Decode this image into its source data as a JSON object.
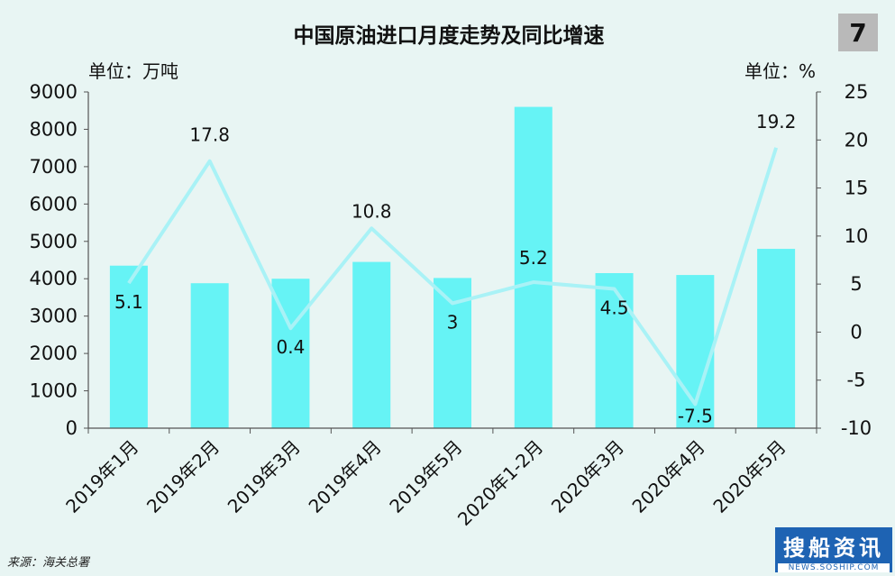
{
  "badge": "7",
  "logo": {
    "name": "搜船资讯",
    "site": "NEWS.SOSHIP.COM"
  },
  "source": "来源：海关总署",
  "colors": {
    "bar": "#66f3f5",
    "line": "#a9f2f6",
    "background": "#e8f5f3"
  },
  "chart_data": {
    "type": "bar",
    "title": "中国原油进口月度走势及同比增速",
    "left_unit": "单位：万吨",
    "right_unit": "单位：%",
    "categories": [
      "2019年1月",
      "2019年2月",
      "2019年3月",
      "2019年4月",
      "2019年5月",
      "2020年1-2月",
      "2020年3月",
      "2020年4月",
      "2020年5月"
    ],
    "series": [
      {
        "type": "bar",
        "axis": "left",
        "values": [
          4350,
          3880,
          4000,
          4450,
          4020,
          8600,
          4150,
          4100,
          4800
        ]
      },
      {
        "type": "line",
        "axis": "right",
        "values": [
          5.1,
          17.8,
          0.4,
          10.8,
          3,
          5.2,
          4.5,
          -7.5,
          19.2
        ],
        "labels": [
          "5.1",
          "17.8",
          "0.4",
          "10.8",
          "3",
          "5.2",
          "4.5",
          "-7.5",
          "19.2"
        ]
      }
    ],
    "y_left": {
      "min": 0,
      "max": 9000,
      "ticks": [
        "0",
        "1000",
        "2000",
        "3000",
        "4000",
        "5000",
        "6000",
        "7000",
        "8000",
        "9000"
      ]
    },
    "y_right": {
      "min": -10,
      "max": 25,
      "ticks": [
        "-10",
        "-5",
        "0",
        "5",
        "10",
        "15",
        "20",
        "25"
      ]
    },
    "grid": false,
    "legend": "none"
  }
}
